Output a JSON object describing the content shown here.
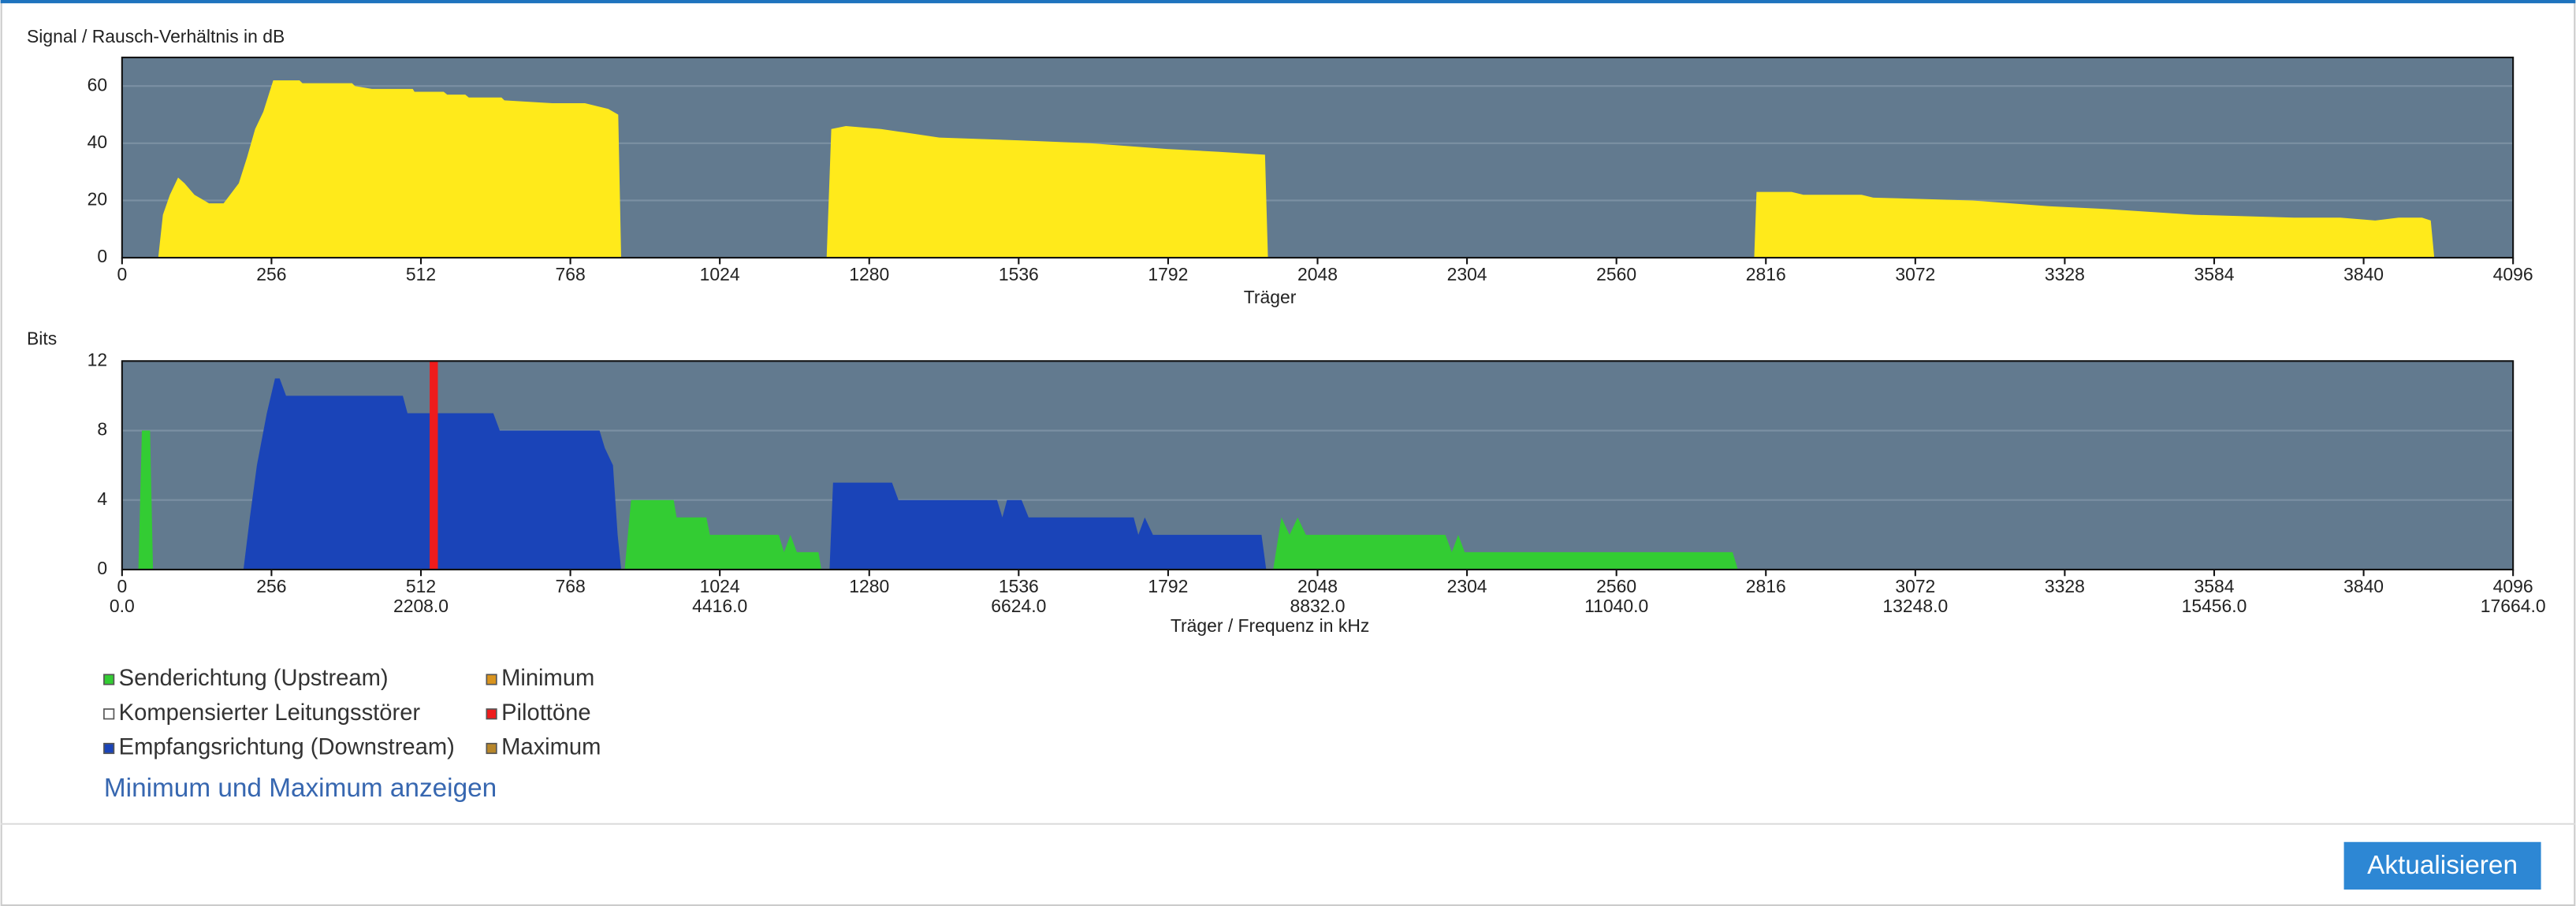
{
  "chart_data": [
    {
      "type": "area",
      "title": "Signal / Rausch-Verhältnis in dB",
      "x_label": "Träger",
      "xlim": [
        0,
        4096
      ],
      "xticks": [
        0,
        256,
        512,
        768,
        1024,
        1280,
        1536,
        1792,
        2048,
        2304,
        2560,
        2816,
        3072,
        3328,
        3584,
        3840,
        4096
      ],
      "ylim": [
        0,
        70
      ],
      "yticks": [
        0,
        20,
        40,
        60
      ],
      "grid": true,
      "background": "#627a8f",
      "series": [
        {
          "color": "#ffea1b",
          "x": [
            62,
            70,
            82,
            96,
            107,
            124,
            149,
            174,
            200,
            214,
            228,
            242,
            259,
            304,
            309,
            394,
            399,
            428,
            498,
            501,
            551,
            557,
            588,
            594,
            650,
            655,
            737,
            793,
            833,
            850,
            855,
            null,
            1207,
            1215,
            1240,
            1300,
            1400,
            1540,
            1660,
            1790,
            1880,
            1958,
            1963,
            null,
            2796,
            2800,
            2860,
            2880,
            2980,
            3000,
            3170,
            3300,
            3400,
            3550,
            3720,
            3800,
            3860,
            3900,
            3940,
            3955,
            3961
          ],
          "values": [
            0,
            15,
            22,
            28,
            26,
            22,
            19,
            19,
            26,
            35,
            45,
            51,
            62,
            62,
            61,
            61,
            60,
            59,
            59,
            58,
            58,
            57,
            57,
            56,
            56,
            55,
            54,
            54,
            52,
            50,
            0,
            null,
            0,
            45,
            46,
            45,
            42,
            41,
            40,
            38,
            37,
            36,
            0,
            null,
            0,
            23,
            23,
            22,
            22,
            21,
            20,
            18,
            17,
            15,
            14,
            14,
            13,
            14,
            14,
            13,
            0
          ]
        }
      ]
    },
    {
      "type": "area",
      "title": "Bits",
      "x_label": "Träger / Frequenz in kHz",
      "xlim": [
        0,
        4096
      ],
      "xticks": [
        0,
        256,
        512,
        768,
        1024,
        1280,
        1536,
        1792,
        2048,
        2304,
        2560,
        2816,
        3072,
        3328,
        3584,
        3840,
        4096
      ],
      "freqlim": [
        0,
        17664
      ],
      "freqticks": [
        {
          "value": 0,
          "label": "0.0"
        },
        {
          "value": 2208,
          "label": "2208.0"
        },
        {
          "value": 4416,
          "label": "4416.0"
        },
        {
          "value": 6624,
          "label": "6624.0"
        },
        {
          "value": 8832,
          "label": "8832.0"
        },
        {
          "value": 11040,
          "label": "11040.0"
        },
        {
          "value": 13248,
          "label": "13248.0"
        },
        {
          "value": 15456,
          "label": "15456.0"
        },
        {
          "value": 17664,
          "label": "17664.0"
        }
      ],
      "ylim": [
        0,
        12
      ],
      "yticks": [
        0,
        4,
        8,
        12
      ],
      "grid": true,
      "background": "#627a8f",
      "series": [
        {
          "name": "Senderichtung (Upstream)",
          "color": "#33cc33",
          "x": [
            28,
            34,
            48,
            53,
            null,
            861,
            872,
            945,
            950,
            1001,
            1007,
            1125,
            1134,
            1145,
            1156,
            1193,
            1198,
            null,
            1972,
            1986,
            2000,
            2014,
            2028,
            2267,
            2278,
            2289,
            2300,
            2661,
            2759,
            2768
          ],
          "values": [
            0,
            8,
            8,
            0,
            null,
            0,
            4,
            4,
            3,
            3,
            2,
            2,
            1,
            2,
            1,
            1,
            0,
            null,
            0,
            3,
            2,
            3,
            2,
            2,
            1,
            2,
            1,
            1,
            1,
            0
          ]
        },
        {
          "name": "Kompensierter Leitungsstörer",
          "color": "#ffffff"
        },
        {
          "name": "Empfangsrichtung (Downstream)",
          "color": "#1a44b8",
          "x": [
            208,
            219,
            231,
            248,
            262,
            270,
            281,
            481,
            489,
            636,
            647,
            818,
            827,
            841,
            849,
            855,
            null,
            1212,
            1218,
            1319,
            1330,
            1499,
            1508,
            1516,
            1541,
            1553,
            1733,
            1741,
            1752,
            1766,
            1952,
            1960
          ],
          "values": [
            0,
            3,
            6,
            9,
            11,
            11,
            10,
            10,
            9,
            9,
            8,
            8,
            7,
            6,
            2,
            0,
            null,
            0,
            5,
            5,
            4,
            4,
            3,
            4,
            4,
            3,
            3,
            2,
            3,
            2,
            2,
            0
          ]
        },
        {
          "name": "Minimum",
          "color": "#d9941e"
        },
        {
          "name": "Pilottöne",
          "color": "#ee1c1c",
          "type": "bar",
          "x": [
            534
          ],
          "values": [
            12
          ]
        },
        {
          "name": "Maximum",
          "color": "#b7862a"
        }
      ]
    }
  ],
  "link": "Minimum und Maximum anzeigen",
  "button": "Aktualisieren"
}
